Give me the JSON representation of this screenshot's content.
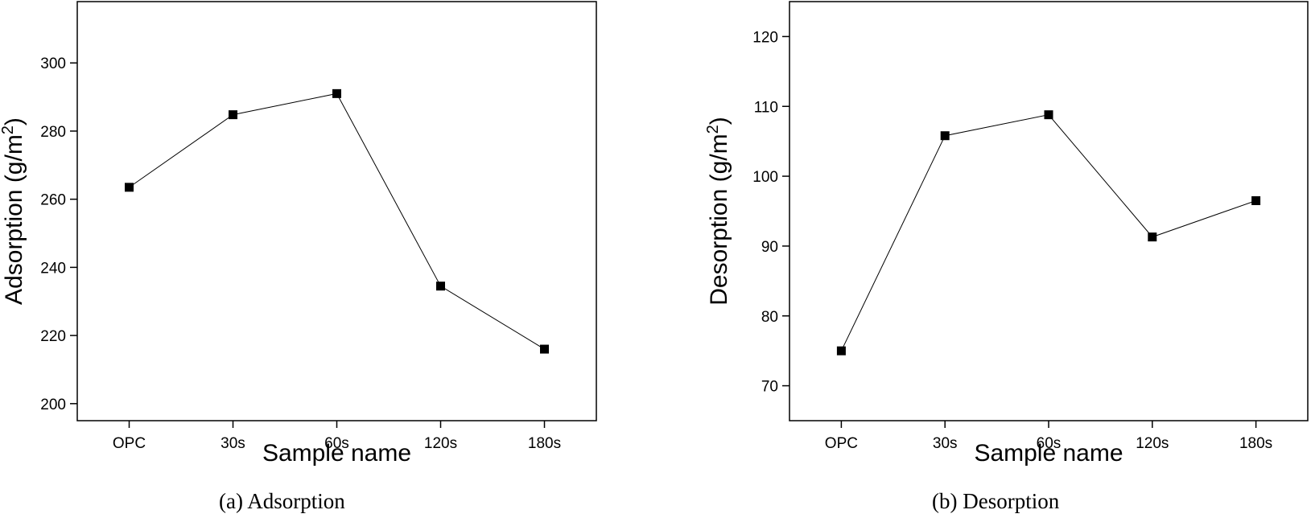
{
  "figure": {
    "captions": [
      "(a) Adsorption",
      "(b) Desorption"
    ]
  },
  "chart_data": [
    {
      "type": "line",
      "title": "",
      "xlabel": "Sample name",
      "ylabel": "Adsorption (g/m²)",
      "ylabel_base": "Adsorption (g/m",
      "ylabel_sup": "2",
      "ylabel_tail": ")",
      "categories": [
        "OPC",
        "30s",
        "60s",
        "120s",
        "180s"
      ],
      "series": [
        {
          "values": [
            263.5,
            284.8,
            291.0,
            234.5,
            216.0
          ]
        }
      ],
      "ylim": [
        195,
        318
      ],
      "yticks": [
        200,
        220,
        240,
        260,
        280,
        300
      ],
      "marker": "square",
      "grid": false,
      "line_color": "#000000"
    },
    {
      "type": "line",
      "title": "",
      "xlabel": "Sample name",
      "ylabel": "Desorption (g/m²)",
      "ylabel_base": "Desorption (g/m",
      "ylabel_sup": "2",
      "ylabel_tail": ")",
      "categories": [
        "OPC",
        "30s",
        "60s",
        "120s",
        "180s"
      ],
      "series": [
        {
          "values": [
            75.0,
            105.8,
            108.8,
            91.3,
            96.5
          ]
        }
      ],
      "ylim": [
        65,
        125
      ],
      "yticks": [
        70,
        80,
        90,
        100,
        110,
        120
      ],
      "marker": "square",
      "grid": false,
      "line_color": "#000000"
    }
  ]
}
